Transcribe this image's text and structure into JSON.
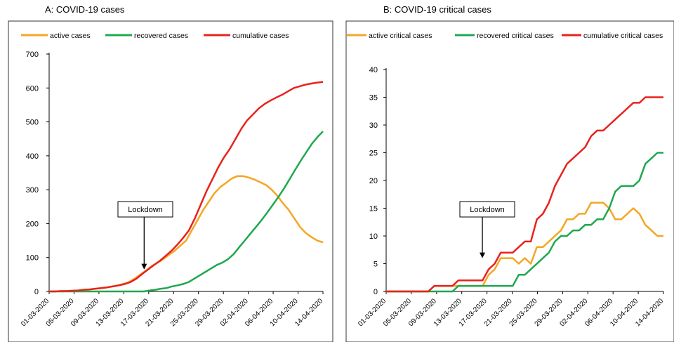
{
  "chart_data": [
    {
      "type": "line",
      "title": "A: COVID-19 cases",
      "ylim": [
        0,
        700
      ],
      "yticks": [
        0,
        100,
        200,
        300,
        400,
        500,
        600,
        700
      ],
      "x_tick_labels": [
        "01-03-2020",
        "05-03-2020",
        "09-03-2020",
        "13-03-2020",
        "17-03-2020",
        "21-03-2020",
        "25-03-2020",
        "29-03-2020",
        "02-04-2020",
        "06-04-2020",
        "10-04-2020",
        "14-04-2020"
      ],
      "legend_position": "top",
      "annotation": {
        "text": "Lockdown",
        "x": 17,
        "y": 65
      },
      "series": [
        {
          "name": "active cases",
          "color": "#F5A623",
          "values": [
            0,
            0,
            1,
            1,
            2,
            3,
            5,
            6,
            8,
            10,
            12,
            15,
            18,
            22,
            28,
            38,
            50,
            62,
            75,
            85,
            95,
            108,
            120,
            135,
            150,
            180,
            210,
            240,
            265,
            290,
            308,
            320,
            333,
            340,
            340,
            336,
            330,
            322,
            314,
            300,
            282,
            260,
            240,
            215,
            190,
            172,
            160,
            150,
            145
          ]
        },
        {
          "name": "recovered cases",
          "color": "#1FA84F",
          "values": [
            0,
            0,
            0,
            0,
            0,
            0,
            0,
            0,
            0,
            0,
            0,
            0,
            0,
            0,
            0,
            0,
            0,
            0,
            3,
            5,
            8,
            10,
            15,
            18,
            22,
            28,
            38,
            48,
            58,
            68,
            78,
            85,
            95,
            110,
            130,
            150,
            170,
            190,
            210,
            232,
            255,
            278,
            303,
            330,
            358,
            385,
            410,
            435,
            455,
            472
          ]
        },
        {
          "name": "cumulative cases",
          "color": "#E8221C",
          "values": [
            0,
            0,
            1,
            1,
            2,
            3,
            5,
            6,
            8,
            10,
            12,
            15,
            18,
            22,
            28,
            38,
            52,
            65,
            78,
            90,
            105,
            120,
            138,
            158,
            180,
            215,
            255,
            295,
            330,
            365,
            395,
            420,
            450,
            480,
            505,
            522,
            540,
            553,
            563,
            572,
            580,
            590,
            600,
            605,
            610,
            613,
            616,
            618
          ]
        }
      ]
    },
    {
      "type": "line",
      "title": "B: COVID-19 critical cases",
      "ylim": [
        0,
        40
      ],
      "yticks": [
        0,
        5,
        10,
        15,
        20,
        25,
        30,
        35,
        40
      ],
      "x_tick_labels": [
        "01-03-2020",
        "05-03-2020",
        "09-03-2020",
        "13-03-2020",
        "17-03-2020",
        "21-03-2020",
        "25-03-2020",
        "29-03-2020",
        "02-04-2020",
        "06-04-2020",
        "10-04-2020",
        "14-04-2020"
      ],
      "legend_position": "top",
      "annotation": {
        "text": "Lockdown",
        "x": 17,
        "y": 6
      },
      "series": [
        {
          "name": "active critical cases",
          "color": "#F5A623",
          "values": [
            0,
            0,
            0,
            0,
            0,
            0,
            0,
            0,
            1,
            1,
            1,
            1,
            1,
            1,
            1,
            1,
            1,
            3,
            4,
            6,
            6,
            6,
            5,
            6,
            5,
            8,
            8,
            9,
            10,
            11,
            13,
            13,
            14,
            14,
            16,
            16,
            16,
            15,
            13,
            13,
            14,
            15,
            14,
            12,
            11,
            10,
            10
          ]
        },
        {
          "name": "recovered critical cases",
          "color": "#1FA84F",
          "values": [
            0,
            0,
            0,
            0,
            0,
            0,
            0,
            0,
            0,
            0,
            0,
            0,
            1,
            1,
            1,
            1,
            1,
            1,
            1,
            1,
            1,
            1,
            3,
            3,
            4,
            5,
            6,
            7,
            9,
            10,
            10,
            11,
            11,
            12,
            12,
            13,
            13,
            15,
            18,
            19,
            19,
            19,
            20,
            23,
            24,
            25,
            25
          ]
        },
        {
          "name": "cumulative critical cases",
          "color": "#E8221C",
          "values": [
            0,
            0,
            0,
            0,
            0,
            0,
            0,
            0,
            1,
            1,
            1,
            1,
            2,
            2,
            2,
            2,
            2,
            4,
            5,
            7,
            7,
            7,
            8,
            9,
            9,
            13,
            14,
            16,
            19,
            21,
            23,
            24,
            25,
            26,
            28,
            29,
            29,
            30,
            31,
            32,
            33,
            34,
            34,
            35,
            35,
            35,
            35
          ]
        }
      ]
    }
  ]
}
